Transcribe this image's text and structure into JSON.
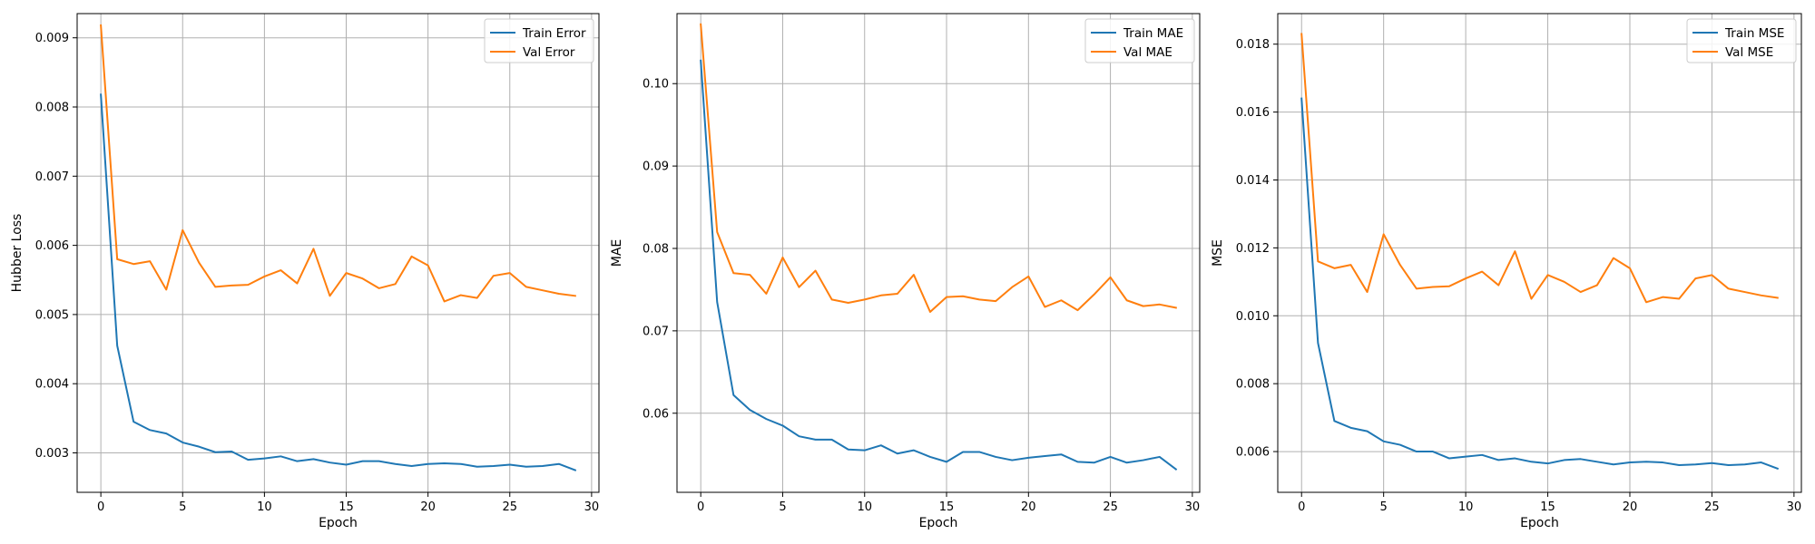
{
  "chart_data": [
    {
      "type": "line",
      "xlabel": "Epoch",
      "ylabel": "Hubber Loss",
      "xlim": [
        -1.45,
        30.45
      ],
      "ylim": [
        0.00243,
        0.00935
      ],
      "xticks": [
        0,
        5,
        10,
        15,
        20,
        25,
        30
      ],
      "xtick_labels": [
        "0",
        "5",
        "10",
        "15",
        "20",
        "25",
        "30"
      ],
      "yticks": [
        0.003,
        0.004,
        0.005,
        0.006,
        0.007,
        0.008,
        0.009
      ],
      "ytick_labels": [
        "0.003",
        "0.004",
        "0.005",
        "0.006",
        "0.007",
        "0.008",
        "0.009"
      ],
      "grid": true,
      "legend": "top-right",
      "x": [
        0,
        1,
        2,
        3,
        4,
        5,
        6,
        7,
        8,
        9,
        10,
        11,
        12,
        13,
        14,
        15,
        16,
        17,
        18,
        19,
        20,
        21,
        22,
        23,
        24,
        25,
        26,
        27,
        28,
        29
      ],
      "series": [
        {
          "name": "Train Error",
          "color": "#1f77b4",
          "values": [
            0.00818,
            0.00455,
            0.00345,
            0.00333,
            0.00328,
            0.00315,
            0.00309,
            0.00301,
            0.00302,
            0.0029,
            0.00292,
            0.00295,
            0.00288,
            0.00291,
            0.00286,
            0.00283,
            0.00288,
            0.00288,
            0.00284,
            0.00281,
            0.00284,
            0.00285,
            0.00284,
            0.0028,
            0.00281,
            0.00283,
            0.0028,
            0.00281,
            0.00284,
            0.00275
          ]
        },
        {
          "name": "Val Error",
          "color": "#ff7f0e",
          "values": [
            0.00918,
            0.0058,
            0.00573,
            0.00577,
            0.00536,
            0.00622,
            0.00575,
            0.0054,
            0.00542,
            0.00543,
            0.00555,
            0.00564,
            0.00545,
            0.00595,
            0.00527,
            0.0056,
            0.00552,
            0.00538,
            0.00544,
            0.00584,
            0.00571,
            0.00519,
            0.00528,
            0.00524,
            0.00556,
            0.0056,
            0.0054,
            0.00535,
            0.0053,
            0.00527
          ]
        }
      ]
    },
    {
      "type": "line",
      "xlabel": "Epoch",
      "ylabel": "MAE",
      "xlim": [
        -1.45,
        30.45
      ],
      "ylim": [
        0.0504,
        0.1085
      ],
      "xticks": [
        0,
        5,
        10,
        15,
        20,
        25,
        30
      ],
      "xtick_labels": [
        "0",
        "5",
        "10",
        "15",
        "20",
        "25",
        "30"
      ],
      "yticks": [
        0.06,
        0.07,
        0.08,
        0.09,
        0.1
      ],
      "ytick_labels": [
        "0.06",
        "0.07",
        "0.08",
        "0.09",
        "0.10"
      ],
      "grid": true,
      "legend": "top-right",
      "x": [
        0,
        1,
        2,
        3,
        4,
        5,
        6,
        7,
        8,
        9,
        10,
        11,
        12,
        13,
        14,
        15,
        16,
        17,
        18,
        19,
        20,
        21,
        22,
        23,
        24,
        25,
        26,
        27,
        28,
        29
      ],
      "series": [
        {
          "name": "Train MAE",
          "color": "#1f77b4",
          "values": [
            0.1028,
            0.0735,
            0.0622,
            0.0604,
            0.0593,
            0.0585,
            0.0572,
            0.0568,
            0.0568,
            0.0556,
            0.0555,
            0.0561,
            0.0551,
            0.0555,
            0.0547,
            0.0541,
            0.0553,
            0.0553,
            0.0547,
            0.0543,
            0.0546,
            0.0548,
            0.055,
            0.0541,
            0.054,
            0.0547,
            0.054,
            0.0543,
            0.0547,
            0.0532
          ]
        },
        {
          "name": "Val MAE",
          "color": "#ff7f0e",
          "values": [
            0.1072,
            0.082,
            0.077,
            0.0768,
            0.0745,
            0.0789,
            0.0753,
            0.0773,
            0.0738,
            0.0734,
            0.0738,
            0.0743,
            0.0745,
            0.0768,
            0.0723,
            0.0741,
            0.0742,
            0.0738,
            0.0736,
            0.0753,
            0.0766,
            0.0729,
            0.0737,
            0.0725,
            0.0744,
            0.0765,
            0.0737,
            0.073,
            0.0732,
            0.0728
          ]
        }
      ]
    },
    {
      "type": "line",
      "xlabel": "Epoch",
      "ylabel": "MSE",
      "xlim": [
        -1.45,
        30.45
      ],
      "ylim": [
        0.0048,
        0.0189
      ],
      "xticks": [
        0,
        5,
        10,
        15,
        20,
        25,
        30
      ],
      "xtick_labels": [
        "0",
        "5",
        "10",
        "15",
        "20",
        "25",
        "30"
      ],
      "yticks": [
        0.006,
        0.008,
        0.01,
        0.012,
        0.014,
        0.016,
        0.018
      ],
      "ytick_labels": [
        "0.006",
        "0.008",
        "0.010",
        "0.012",
        "0.014",
        "0.016",
        "0.018"
      ],
      "grid": true,
      "legend": "top-right",
      "x": [
        0,
        1,
        2,
        3,
        4,
        5,
        6,
        7,
        8,
        9,
        10,
        11,
        12,
        13,
        14,
        15,
        16,
        17,
        18,
        19,
        20,
        21,
        22,
        23,
        24,
        25,
        26,
        27,
        28,
        29
      ],
      "series": [
        {
          "name": "Train MSE",
          "color": "#1f77b4",
          "values": [
            0.0164,
            0.0092,
            0.0069,
            0.0067,
            0.0066,
            0.0063,
            0.0062,
            0.006,
            0.006,
            0.0058,
            0.00585,
            0.0059,
            0.00575,
            0.0058,
            0.0057,
            0.00565,
            0.00575,
            0.00578,
            0.0057,
            0.00562,
            0.00568,
            0.0057,
            0.00568,
            0.0056,
            0.00562,
            0.00566,
            0.0056,
            0.00562,
            0.00568,
            0.0055
          ]
        },
        {
          "name": "Val MSE",
          "color": "#ff7f0e",
          "values": [
            0.0183,
            0.0116,
            0.0114,
            0.0115,
            0.0107,
            0.0124,
            0.0115,
            0.0108,
            0.01085,
            0.01087,
            0.0111,
            0.0113,
            0.0109,
            0.0119,
            0.0105,
            0.0112,
            0.011,
            0.0107,
            0.0109,
            0.0117,
            0.0114,
            0.0104,
            0.01055,
            0.0105,
            0.0111,
            0.0112,
            0.0108,
            0.0107,
            0.0106,
            0.01053
          ]
        }
      ]
    }
  ]
}
